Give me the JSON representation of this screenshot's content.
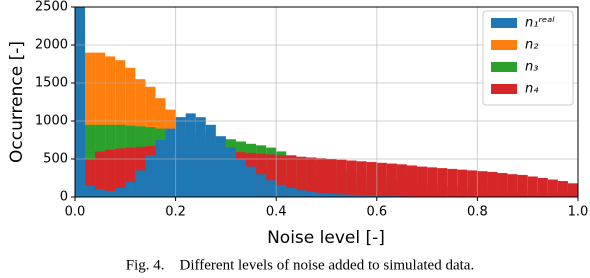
{
  "chart_data": {
    "type": "histogram",
    "caption": "Fig. 4.    Different levels of noise added to simulated data.",
    "xlabel": "Noise level [-]",
    "ylabel": "Occurrence [-]",
    "bins": [
      0,
      0.02,
      0.04,
      0.06,
      0.08,
      0.1,
      0.12,
      0.14,
      0.16,
      0.18,
      0.2,
      0.22,
      0.24,
      0.26,
      0.28,
      0.3,
      0.32,
      0.34,
      0.36,
      0.38,
      0.4,
      0.42,
      0.44,
      0.46,
      0.48,
      0.5,
      0.52,
      0.54,
      0.56,
      0.58,
      0.6,
      0.62,
      0.64,
      0.66,
      0.68,
      0.7,
      0.72,
      0.74,
      0.76,
      0.78,
      0.8,
      0.82,
      0.84,
      0.86,
      0.88,
      0.9,
      0.92,
      0.94,
      0.96,
      0.98,
      1
    ],
    "series": [
      {
        "name": "n₁ʳᵉᵃˡ",
        "color": "#1f77b4",
        "values": [
          2500,
          150,
          100,
          80,
          120,
          200,
          350,
          550,
          750,
          900,
          1050,
          1100,
          1050,
          950,
          800,
          650,
          500,
          400,
          300,
          220,
          160,
          120,
          90,
          70,
          55,
          45,
          35,
          30,
          25,
          20,
          15,
          12,
          10,
          8,
          6,
          5,
          4,
          3,
          3,
          2,
          2,
          2,
          1,
          1,
          1,
          1,
          1,
          1,
          1,
          1
        ]
      },
      {
        "name": "n₂",
        "color": "#ff7f0e",
        "values": [
          1600,
          1900,
          1900,
          1850,
          1800,
          1700,
          1550,
          1450,
          1300,
          1150,
          1050,
          950,
          850,
          750,
          650,
          580,
          500,
          440,
          390,
          340,
          300,
          270,
          240,
          210,
          190,
          170,
          150,
          135,
          120,
          110,
          100,
          90,
          80,
          75,
          70,
          65,
          60,
          55,
          50,
          45,
          40,
          38,
          35,
          32,
          30,
          28,
          26,
          24,
          22,
          20
        ]
      },
      {
        "name": "n₃",
        "color": "#2ca02c",
        "values": [
          900,
          950,
          950,
          950,
          950,
          940,
          930,
          920,
          900,
          880,
          860,
          840,
          820,
          800,
          780,
          760,
          730,
          700,
          680,
          650,
          600,
          550,
          500,
          460,
          420,
          390,
          360,
          330,
          300,
          280,
          260,
          240,
          220,
          200,
          180,
          160,
          150,
          140,
          130,
          120,
          110,
          100,
          90,
          85,
          80,
          75,
          70,
          65,
          60,
          55
        ]
      },
      {
        "name": "n₄",
        "color": "#d62728",
        "values": [
          50,
          500,
          600,
          620,
          640,
          650,
          660,
          670,
          670,
          660,
          650,
          640,
          630,
          620,
          610,
          600,
          590,
          580,
          570,
          560,
          550,
          540,
          530,
          520,
          510,
          500,
          490,
          480,
          470,
          460,
          450,
          440,
          430,
          415,
          400,
          390,
          380,
          370,
          360,
          350,
          340,
          330,
          315,
          300,
          290,
          270,
          250,
          230,
          210,
          180
        ]
      }
    ],
    "xlim": [
      0,
      1
    ],
    "ylim": [
      0,
      2500
    ],
    "xticks": [
      {
        "value": 0,
        "label": "0.0"
      },
      {
        "value": 0.2,
        "label": "0.2"
      },
      {
        "value": 0.4,
        "label": "0.4"
      },
      {
        "value": 0.6,
        "label": "0.6"
      },
      {
        "value": 0.8,
        "label": "0.8"
      },
      {
        "value": 1,
        "label": "1.0"
      }
    ],
    "yticks": [
      0,
      500,
      1000,
      1500,
      2000,
      2500
    ],
    "grid": true,
    "legend": "upper right"
  }
}
